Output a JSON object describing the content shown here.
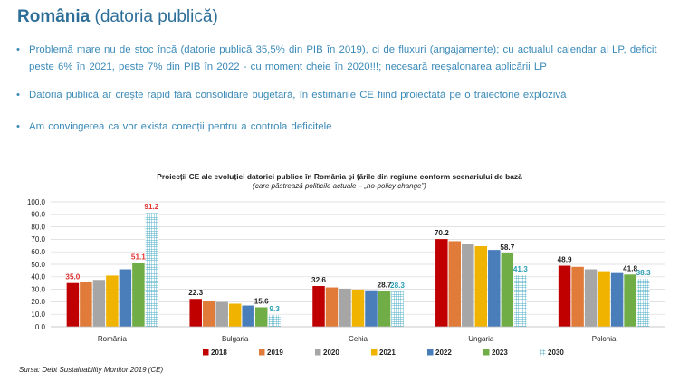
{
  "header": {
    "title_bold": "România",
    "title_rest": " (datoria publică)"
  },
  "bullets": [
    "Problemă mare nu de stoc încă (datorie publică 35,5% din PIB în 2019), ci de fluxuri (angajamente); cu actualul calendar al LP, deficit peste 6% în 2021, peste 7% din PIB în 2022 - cu moment cheie în 2020!!!; necesară reeșalonarea aplicării LP",
    "Datoria publică ar crește rapid fără consolidare bugetară, în estimările CE fiind proiectată pe o traiectorie explozivă",
    "Am convingerea ca vor exista corecții pentru a controla deficitele"
  ],
  "source": "Sursa: Debt Sustainability Monitor 2019 (CE)",
  "chart_data": {
    "type": "bar",
    "title": "Proiecții CE ale evoluției datoriei publice în România și țările din regiune conform scenariului de bază",
    "subtitle": "(care păstrează politicile actuale – „no-policy change”)",
    "categories": [
      "România",
      "Bulgaria",
      "Cehia",
      "Ungaria",
      "Polonia"
    ],
    "ylim": [
      0,
      100
    ],
    "yticks": [
      "0.0",
      "10.0",
      "20.0",
      "30.0",
      "40.0",
      "50.0",
      "60.0",
      "70.0",
      "80.0",
      "90.0",
      "100.0"
    ],
    "grid": true,
    "legend_position": "bottom",
    "series": [
      {
        "name": "2018",
        "color": "#c00000",
        "values": [
          35.0,
          22.3,
          32.6,
          70.2,
          48.9
        ],
        "labels": [
          "35.0",
          "22.3",
          "32.6",
          "70.2",
          "48.9"
        ]
      },
      {
        "name": "2019",
        "color": "#e07b39",
        "values": [
          35.5,
          21.0,
          31.5,
          68.5,
          48.0
        ]
      },
      {
        "name": "2020",
        "color": "#a6a6a6",
        "values": [
          37.5,
          19.8,
          30.5,
          66.5,
          46.0
        ]
      },
      {
        "name": "2021",
        "color": "#f0b400",
        "values": [
          41.0,
          18.5,
          29.8,
          64.5,
          44.5
        ]
      },
      {
        "name": "2022",
        "color": "#4a7ebb",
        "values": [
          46.0,
          17.0,
          29.2,
          61.5,
          43.0
        ]
      },
      {
        "name": "2023",
        "color": "#70ad47",
        "values": [
          51.1,
          15.6,
          28.7,
          58.7,
          41.8
        ],
        "labels": [
          "51.1",
          "15.6",
          "28.7",
          "58.7",
          "41.8"
        ]
      },
      {
        "name": "2030",
        "color": "#4bacc6",
        "pattern": "grid",
        "values": [
          91.2,
          9.3,
          28.3,
          41.3,
          38.3
        ],
        "labels": [
          "91.2",
          "9.3",
          "28.3",
          "41.3",
          "38.3"
        ]
      }
    ],
    "label_colors": {
      "2018": "#222222",
      "2023": "#222222",
      "2030": "#2a9fb5",
      "romania_2023": "#e03030",
      "romania_2030": "#e03030",
      "romania_2018": "#e03030"
    }
  }
}
